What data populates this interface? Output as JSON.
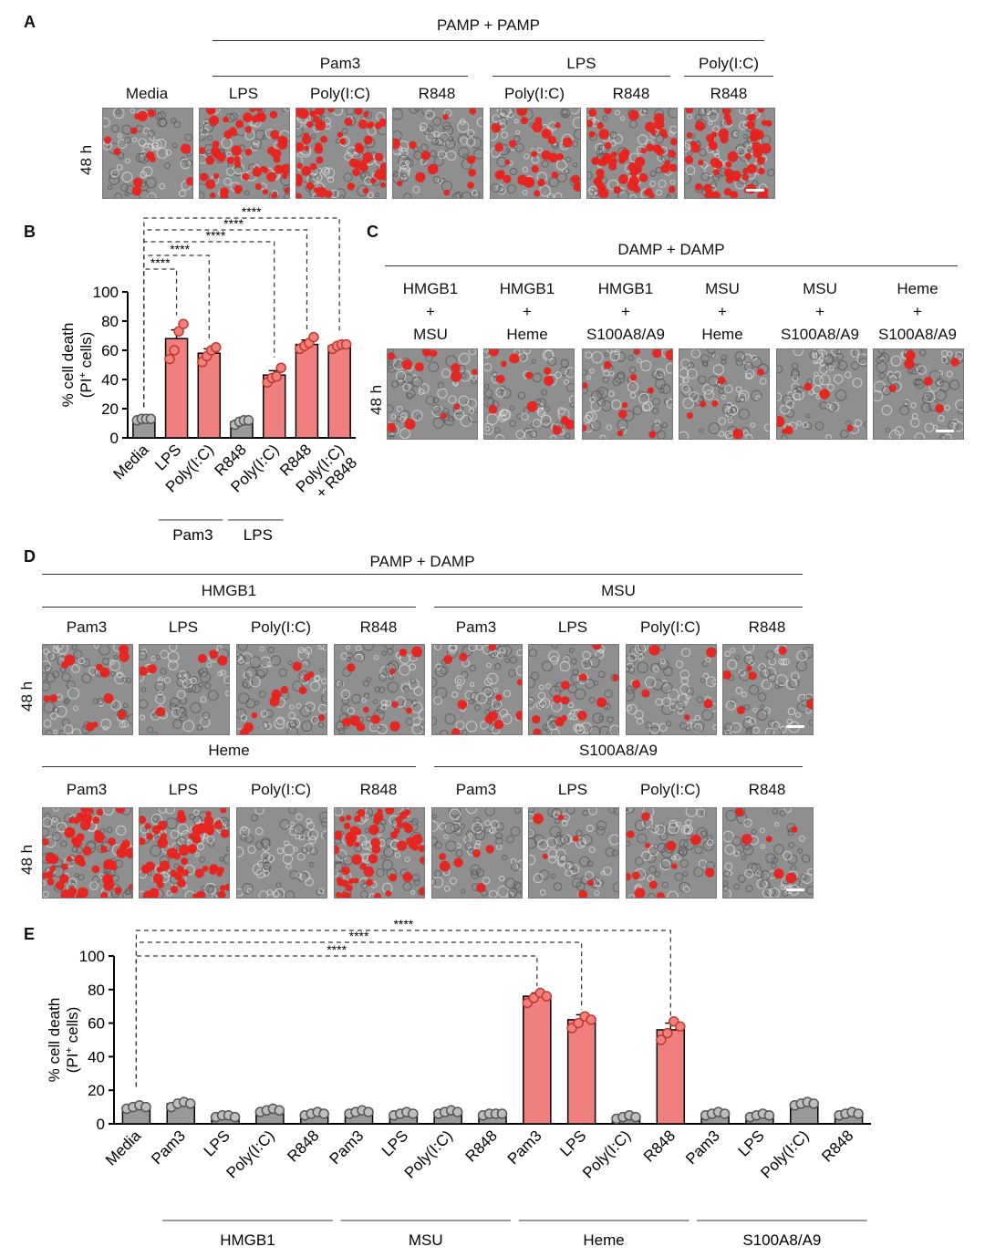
{
  "panels": {
    "a": "A",
    "b": "B",
    "c": "C",
    "d": "D",
    "e": "E"
  },
  "panelA": {
    "title": "PAMP + PAMP",
    "time": "48 h",
    "groups": [
      "Pam3",
      "LPS",
      "Poly(I:C)"
    ],
    "images": [
      {
        "label": "Media",
        "density": "low"
      },
      {
        "label": "LPS",
        "density": "high"
      },
      {
        "label": "Poly(I:C)",
        "density": "high"
      },
      {
        "label": "R848",
        "density": "low"
      },
      {
        "label": "Poly(I:C)",
        "density": "med"
      },
      {
        "label": "R848",
        "density": "high"
      },
      {
        "label": "R848",
        "density": "high"
      }
    ]
  },
  "panelC": {
    "title": "DAMP + DAMP",
    "time": "48 h",
    "images": [
      {
        "top": "HMGB1",
        "plus": "+",
        "bottom": "MSU"
      },
      {
        "top": "HMGB1",
        "plus": "+",
        "bottom": "Heme"
      },
      {
        "top": "HMGB1",
        "plus": "+",
        "bottom": "S100A8/A9"
      },
      {
        "top": "MSU",
        "plus": "+",
        "bottom": "Heme"
      },
      {
        "top": "MSU",
        "plus": "+",
        "bottom": "S100A8/A9"
      },
      {
        "top": "Heme",
        "plus": "+",
        "bottom": "S100A8/A9"
      }
    ]
  },
  "panelD": {
    "title": "PAMP + DAMP",
    "time": "48 h",
    "groups": [
      "HMGB1",
      "MSU",
      "Heme",
      "S100A8/A9"
    ],
    "labels": [
      "Pam3",
      "LPS",
      "Poly(I:C)",
      "R848"
    ],
    "row1_density": [
      "low",
      "low",
      "low",
      "low",
      "low",
      "low",
      "low",
      "low"
    ],
    "row2_density": [
      "high",
      "high",
      "none",
      "high",
      "low",
      "low",
      "low",
      "low"
    ]
  },
  "chart_data": [
    {
      "id": "B",
      "type": "bar",
      "ylabel_1": "% cell death",
      "ylabel_2": "(PI",
      "ylabel_sup": "+",
      "ylabel_3": " cells)",
      "ylim": [
        0,
        100
      ],
      "yticks": [
        "0",
        "20",
        "40",
        "60",
        "80",
        "100"
      ],
      "categories": [
        "Media",
        "LPS",
        "Poly(I:C)",
        "R848",
        "Poly(I:C)",
        "R848",
        "Poly(I:C) + R848"
      ],
      "values": [
        13,
        68,
        58,
        11,
        43,
        64,
        63
      ],
      "errors": [
        1,
        6,
        3,
        1,
        3,
        3,
        1
      ],
      "points": [
        [
          12,
          13,
          13,
          13
        ],
        [
          54,
          60,
          73,
          78
        ],
        [
          52,
          56,
          60,
          62
        ],
        [
          9,
          11,
          12,
          12
        ],
        [
          38,
          41,
          42,
          48
        ],
        [
          61,
          63,
          65,
          69
        ],
        [
          61,
          63,
          64,
          64
        ]
      ],
      "colors": [
        "#999999",
        "#f08080",
        "#f08080",
        "#999999",
        "#f08080",
        "#f08080",
        "#f08080"
      ],
      "groups": [
        "Pam3",
        "LPS"
      ],
      "significance": [
        "****",
        "****",
        "****",
        "****",
        "****"
      ]
    },
    {
      "id": "E",
      "type": "bar",
      "ylabel_1": "% cell death",
      "ylabel_2": "(PI",
      "ylabel_sup": "+",
      "ylabel_3": " cells)",
      "ylim": [
        0,
        100
      ],
      "yticks": [
        "0",
        "20",
        "40",
        "60",
        "80",
        "100"
      ],
      "categories": [
        "Media",
        "Pam3",
        "LPS",
        "Poly(I:C)",
        "R848",
        "Pam3",
        "LPS",
        "Poly(I:C)",
        "R848",
        "Pam3",
        "LPS",
        "Poly(I:C)",
        "R848",
        "Pam3",
        "LPS",
        "Poly(I:C)",
        "R848"
      ],
      "values": [
        10,
        12,
        5,
        8,
        6,
        7,
        6,
        7,
        6,
        76,
        62,
        4,
        56,
        6,
        5,
        12,
        6
      ],
      "errors": [
        1,
        1,
        0.5,
        1,
        0.5,
        1,
        0.5,
        1,
        0.5,
        2,
        3,
        0.5,
        4,
        0.5,
        0.5,
        1,
        0.5
      ],
      "points": [
        [
          9,
          10,
          11,
          10
        ],
        [
          10,
          12,
          13,
          12
        ],
        [
          4,
          5,
          5,
          4
        ],
        [
          7,
          8,
          9,
          8
        ],
        [
          5,
          6,
          7,
          6
        ],
        [
          6,
          7,
          8,
          7
        ],
        [
          5,
          6,
          7,
          6
        ],
        [
          6,
          7,
          8,
          7
        ],
        [
          5,
          6,
          6,
          6
        ],
        [
          72,
          75,
          78,
          76
        ],
        [
          57,
          60,
          64,
          62
        ],
        [
          3,
          4,
          5,
          4
        ],
        [
          50,
          54,
          61,
          58
        ],
        [
          5,
          6,
          7,
          6
        ],
        [
          4,
          5,
          6,
          5
        ],
        [
          11,
          12,
          13,
          12
        ],
        [
          5,
          6,
          7,
          6
        ]
      ],
      "colors": [
        "#999999",
        "#999999",
        "#999999",
        "#999999",
        "#999999",
        "#999999",
        "#999999",
        "#999999",
        "#999999",
        "#f08080",
        "#f08080",
        "#999999",
        "#f08080",
        "#999999",
        "#999999",
        "#999999",
        "#999999"
      ],
      "groups": [
        "HMGB1",
        "MSU",
        "Heme",
        "S100A8/A9"
      ],
      "significance": [
        "****",
        "****",
        "****"
      ]
    }
  ]
}
